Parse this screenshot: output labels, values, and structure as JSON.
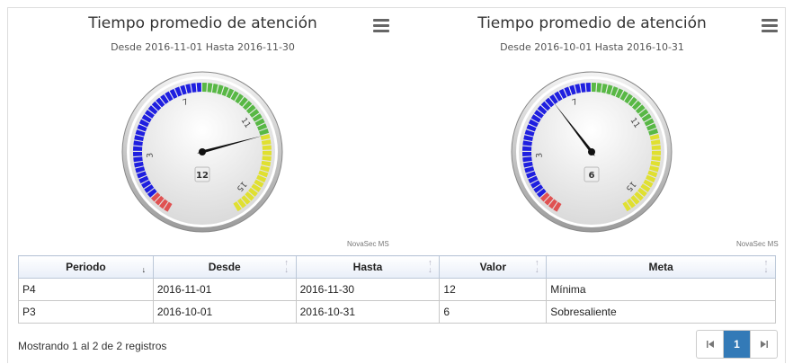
{
  "charts": [
    {
      "title": "Tiempo promedio de atención",
      "subtitle": "Desde 2016-11-01 Hasta 2016-11-30",
      "credits": "NovaSec MS",
      "value_label": "12",
      "tick_labels": [
        "3",
        "7",
        "11",
        "15"
      ],
      "chart_data": {
        "type": "gauge",
        "value": 12,
        "min": 0,
        "max": 16,
        "bands": [
          {
            "from": 0,
            "to": 1,
            "color": "#e05252"
          },
          {
            "from": 1,
            "to": 8,
            "color": "#1f1fe0"
          },
          {
            "from": 8,
            "to": 12,
            "color": "#58b845"
          },
          {
            "from": 12,
            "to": 16,
            "color": "#e0e030"
          }
        ]
      }
    },
    {
      "title": "Tiempo promedio de atención",
      "subtitle": "Desde 2016-10-01 Hasta 2016-10-31",
      "credits": "NovaSec MS",
      "value_label": "6",
      "tick_labels": [
        "3",
        "7",
        "11",
        "15"
      ],
      "chart_data": {
        "type": "gauge",
        "value": 6,
        "min": 0,
        "max": 16,
        "bands": [
          {
            "from": 0,
            "to": 1,
            "color": "#e05252"
          },
          {
            "from": 1,
            "to": 8,
            "color": "#1f1fe0"
          },
          {
            "from": 8,
            "to": 12,
            "color": "#58b845"
          },
          {
            "from": 12,
            "to": 16,
            "color": "#e0e030"
          }
        ]
      }
    }
  ],
  "table": {
    "headers": [
      "Periodo",
      "Desde",
      "Hasta",
      "Valor",
      "Meta"
    ],
    "rows": [
      [
        "P4",
        "2016-11-01",
        "2016-11-30",
        "12",
        "Mínima"
      ],
      [
        "P3",
        "2016-10-01",
        "2016-10-31",
        "6",
        "Sobresaliente"
      ]
    ]
  },
  "footer": {
    "info": "Mostrando 1 al 2 de 2 registros"
  },
  "pager": {
    "first_icon": "first-page-icon",
    "current": "1",
    "last_icon": "last-page-icon"
  },
  "icons": {
    "menu": "hamburger-menu-icon"
  }
}
